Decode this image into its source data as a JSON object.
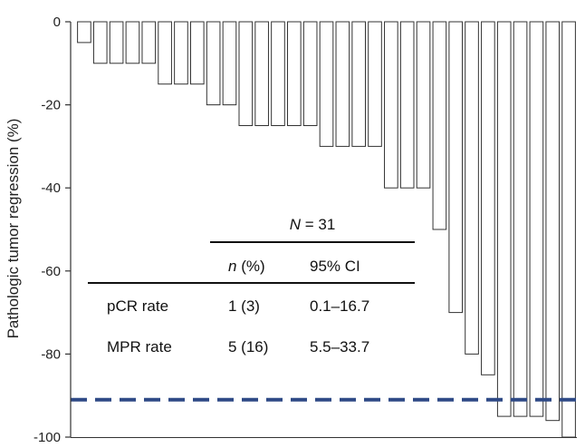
{
  "chart_data": {
    "type": "bar",
    "ylabel": "Pathologic tumor regression (%)",
    "ylim": [
      -100,
      0
    ],
    "yticks": [
      0,
      -20,
      -40,
      -60,
      -80,
      -100
    ],
    "values": [
      -5,
      -10,
      -10,
      -10,
      -10,
      -15,
      -15,
      -15,
      -20,
      -20,
      -25,
      -25,
      -25,
      -25,
      -25,
      -30,
      -30,
      -30,
      -30,
      -40,
      -40,
      -40,
      -50,
      -70,
      -80,
      -85,
      -95,
      -95,
      -95,
      -96,
      -100
    ],
    "bar_fill": "#ffffff",
    "bar_stroke": "#333333",
    "reference_line": {
      "value": -91,
      "color": "#2f4a86",
      "style": "dashed"
    },
    "inset_table": {
      "header_n_symbol": "N",
      "header_n_value": " = 31",
      "col1_italic": "n",
      "col1_rest": " (%)",
      "col2": "95% CI",
      "rows": [
        {
          "label": "pCR rate",
          "n": "1 (3)",
          "ci": "0.1–16.7"
        },
        {
          "label": "MPR rate",
          "n": "5 (16)",
          "ci": "5.5–33.7"
        }
      ]
    }
  }
}
